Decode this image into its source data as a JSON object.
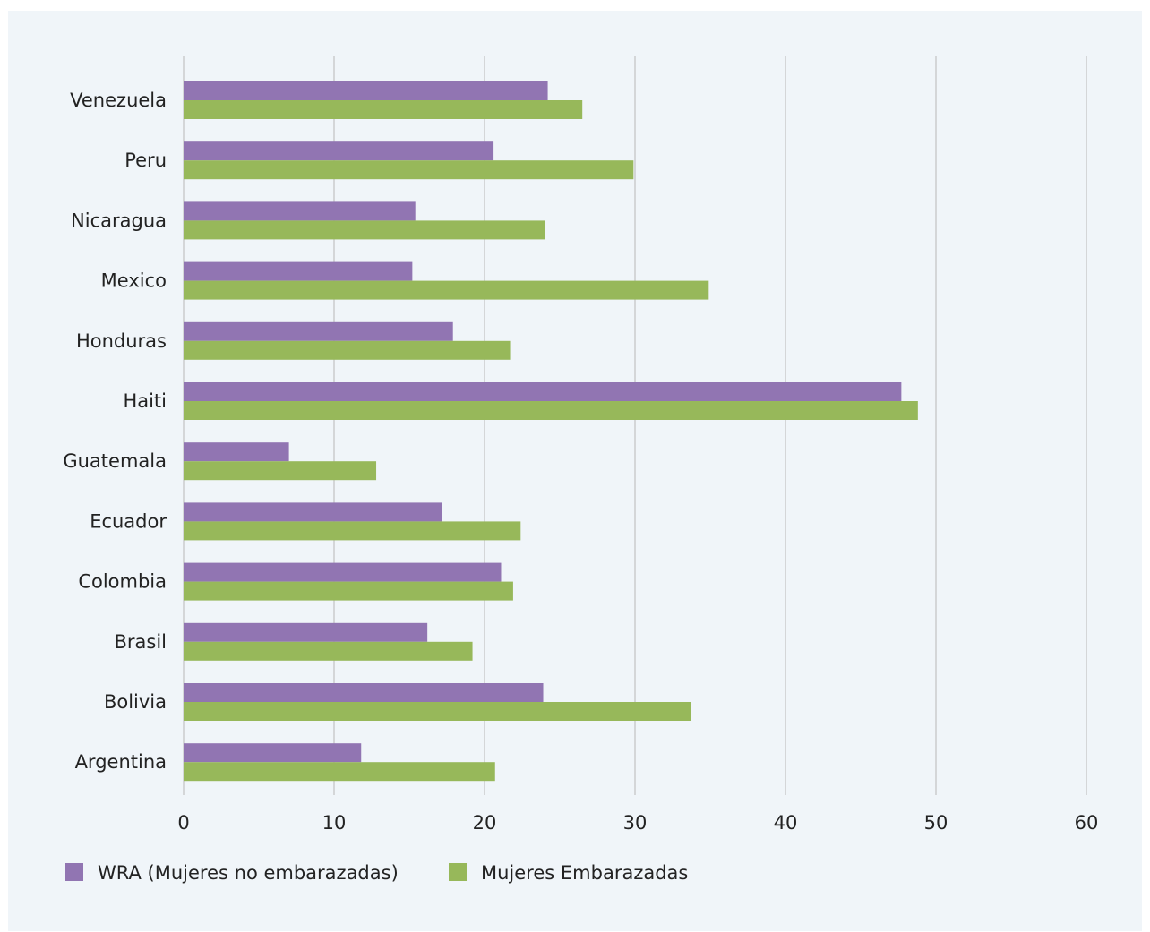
{
  "colors": {
    "series_1": "#9175b2",
    "series_2": "#97b85a",
    "grid": "#b8b8b8",
    "panel_bg": "#f0f5f9"
  },
  "chart_data": {
    "type": "bar",
    "orientation": "horizontal",
    "title": "",
    "xlabel": "",
    "ylabel": "",
    "xlim": [
      0,
      60
    ],
    "x_ticks": [
      0,
      10,
      20,
      30,
      40,
      50,
      60
    ],
    "grid": true,
    "legend_position": "bottom-left",
    "categories": [
      "Venezuela",
      "Peru",
      "Nicaragua",
      "Mexico",
      "Honduras",
      "Haiti",
      "Guatemala",
      "Ecuador",
      "Colombia",
      "Brasil",
      "Bolivia",
      "Argentina"
    ],
    "series": [
      {
        "name": "WRA (Mujeres no embarazadas)",
        "values": [
          24.2,
          20.6,
          15.4,
          15.2,
          17.9,
          47.7,
          7.0,
          17.2,
          21.1,
          16.2,
          23.9,
          11.8
        ]
      },
      {
        "name": "Mujeres Embarazadas",
        "values": [
          26.5,
          29.9,
          24.0,
          34.9,
          21.7,
          48.8,
          12.8,
          22.4,
          21.9,
          19.2,
          33.7,
          20.7
        ]
      }
    ]
  }
}
